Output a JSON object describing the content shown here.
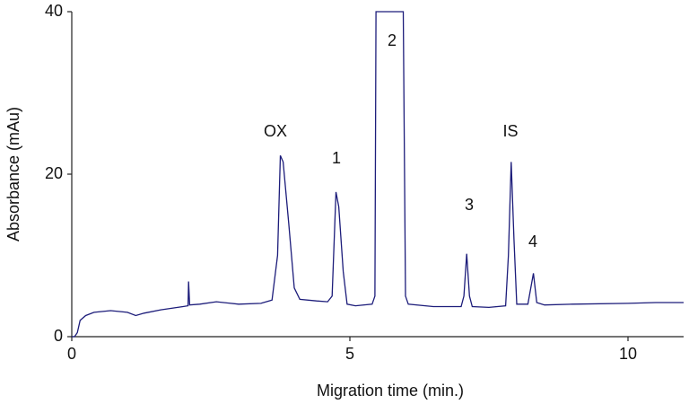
{
  "chart_data": {
    "type": "line",
    "x_label": "Migration time (min.)",
    "y_label": "Absorbance (mAu)",
    "annotations": [
      "OX",
      "1",
      "2",
      "3",
      "IS",
      "4"
    ],
    "xlim": [
      0,
      11
    ],
    "ylim": [
      0,
      40
    ],
    "xticks": [
      0,
      5,
      10
    ],
    "yticks": [
      0,
      20,
      40
    ],
    "series": [
      {
        "color": "#1c1c7a",
        "x": [
          0,
          0.05,
          0.1,
          0.15,
          0.25,
          0.4,
          0.7,
          1.0,
          1.15,
          1.3,
          1.6,
          2.0,
          2.09,
          2.1,
          2.12,
          2.3,
          2.6,
          3.0,
          3.4,
          3.6,
          3.7,
          3.75,
          3.8,
          3.9,
          4.0,
          4.1,
          4.4,
          4.6,
          4.68,
          4.75,
          4.8,
          4.88,
          4.95,
          5.1,
          5.4,
          5.45,
          5.47,
          5.96,
          6.0,
          6.05,
          6.5,
          7.0,
          7.05,
          7.1,
          7.15,
          7.2,
          7.5,
          7.8,
          7.85,
          7.9,
          7.95,
          8.0,
          8.2,
          8.3,
          8.36,
          8.5,
          9.0,
          10.0,
          10.5,
          11.0
        ],
        "values": [
          0,
          0,
          0.5,
          2.0,
          2.6,
          3.0,
          3.2,
          3.0,
          2.6,
          2.9,
          3.3,
          3.7,
          3.8,
          6.8,
          3.9,
          4.0,
          4.3,
          4.0,
          4.1,
          4.5,
          10,
          22.3,
          21.5,
          14,
          6,
          4.6,
          4.4,
          4.3,
          5,
          17.8,
          16,
          8,
          4,
          3.8,
          4.0,
          5,
          40,
          40,
          5,
          4.0,
          3.7,
          3.7,
          5,
          10.2,
          5,
          3.7,
          3.6,
          3.8,
          10,
          21.5,
          12,
          4.0,
          4.0,
          7.8,
          4.2,
          3.9,
          4.0,
          4.1,
          4.2,
          4.2
        ]
      }
    ]
  }
}
